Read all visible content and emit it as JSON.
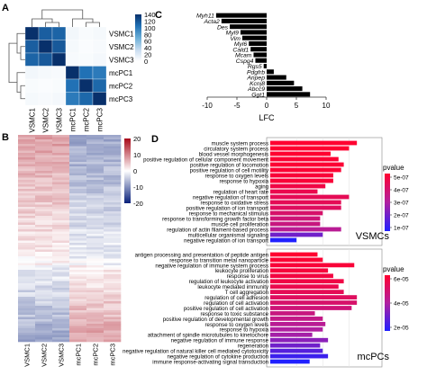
{
  "panel_labels": {
    "a": "A",
    "b": "B",
    "c": "C",
    "d": "D"
  },
  "chart_data": [
    {
      "type": "heatmap",
      "panel": "A",
      "rows": [
        "VSMC1",
        "VSMC2",
        "VSMC3",
        "mcPC1",
        "mcPC2",
        "mcPC3"
      ],
      "columns": [
        "VSMC1",
        "VSMC2",
        "VSMC3",
        "mcPC1",
        "mcPC2",
        "mcPC3"
      ],
      "values": [
        [
          140,
          115,
          112,
          8,
          4,
          6
        ],
        [
          115,
          140,
          118,
          6,
          3,
          5
        ],
        [
          112,
          118,
          140,
          5,
          4,
          7
        ],
        [
          8,
          6,
          5,
          140,
          105,
          100
        ],
        [
          4,
          3,
          4,
          105,
          140,
          110
        ],
        [
          6,
          5,
          7,
          100,
          110,
          140
        ]
      ],
      "colorbar": {
        "ticks": [
          "140",
          "120",
          "100",
          "80",
          "60",
          "40",
          "20",
          "0"
        ],
        "min": 0,
        "max": 140,
        "colors": [
          "#ffffff",
          "#c6dbef",
          "#6baed6",
          "#2171b5",
          "#08306b"
        ]
      },
      "dendrogram": true
    },
    {
      "type": "heatmap",
      "panel": "B",
      "columns": [
        "VSMC1",
        "VSMC2",
        "VSMC3",
        "mcPC1",
        "mcPC2",
        "mcPC3"
      ],
      "colorbar": {
        "ticks": [
          "20",
          "10",
          "0",
          "-10",
          "-20"
        ],
        "min": -20,
        "max": 20,
        "colors": [
          "#08207a",
          "#ffffff",
          "#a80a1a"
        ]
      }
    },
    {
      "type": "bar",
      "panel": "C",
      "orientation": "horizontal",
      "categories": [
        "Myh11",
        "Acta2",
        "Des",
        "Myl9",
        "Vim",
        "Myl6",
        "Cald1",
        "Mcam",
        "Cspg4",
        "Rgs5",
        "Pdgfrb",
        "Anpep",
        "Kcnj8",
        "Abcc9",
        "Ggt1"
      ],
      "values": [
        -8.5,
        -7.6,
        -6.2,
        -4.4,
        -4.1,
        -3.0,
        -2.7,
        -2.2,
        -1.9,
        -0.5,
        1.2,
        3.3,
        4.6,
        6.0,
        7.3
      ],
      "xlabel": "LFC",
      "xlim": [
        -10,
        10
      ],
      "xticks": [
        -10,
        -5,
        0,
        5,
        10
      ],
      "bar_color": "#000000"
    },
    {
      "type": "bar",
      "panel": "D",
      "subtitle": "VSMCs",
      "orientation": "horizontal",
      "categories": [
        "muscle system process",
        "circulatory system process",
        "blood vessel morphogenesis",
        "positive regulation of cellular component movement",
        "positive regulation of locomotion",
        "positive regulation of cell motility",
        "response to oxygen levels",
        "response to hypoxia",
        "aging",
        "regulation of heart rate",
        "negative regulation of transport",
        "response to oxidative stress",
        "positive regulation of ion transport",
        "response to mechanical stimulus",
        "response to transforming growth factor beta",
        "muscle cell proliferation",
        "regulation of actin filament-based process",
        "multicellular organismal signaling",
        "negative regulation of ion transport"
      ],
      "values": [
        33,
        30,
        23,
        26,
        28,
        27,
        24,
        24,
        21,
        18,
        30,
        27,
        27,
        20,
        19,
        19,
        27,
        20,
        10
      ],
      "pvalue": [
        1e-08,
        1e-08,
        1e-08,
        2e-08,
        2e-08,
        2e-08,
        3e-08,
        3e-08,
        6e-08,
        8e-08,
        1e-07,
        1e-07,
        1.2e-07,
        1.5e-07,
        1.8e-07,
        2e-07,
        2.5e-07,
        4e-07,
        5.5e-07
      ],
      "legend_title": "pvalue",
      "legend_ticks": [
        "5e-07",
        "4e-07",
        "3e-07",
        "2e-07",
        "1e-07"
      ],
      "colors": [
        "#ff0030",
        "#b020a0",
        "#2020ff"
      ],
      "xlim": [
        0,
        35
      ]
    },
    {
      "type": "bar",
      "panel": "D",
      "subtitle": "mcPCs",
      "orientation": "horizontal",
      "categories": [
        "antigen processing and presentation of peptide antigen",
        "response to transition metal nanoparticle",
        "negative regulation of immune system process",
        "leukocyte proliferation",
        "response to virus",
        "regulation of leukocyte activation",
        "leukocyte mediated immunity",
        "T cell aggregation",
        "regulation of cell adhesion",
        "regulation of cell activation",
        "positive regulation of cell activation",
        "response to toxic substance",
        "positive regulation of developmental growth",
        "response to oxygen levels",
        "response to hypoxia",
        "attachment of spindle microtubules to kinetochore",
        "negative regulation of immune response",
        "regeneration",
        "negative regulation of natural killer cell mediated cytotoxicity",
        "negative regulation of cytokine production",
        "immune response-activating signal transduction"
      ],
      "values": [
        18,
        20,
        32,
        22,
        24,
        28,
        26,
        28,
        33,
        33,
        31,
        17,
        20,
        21,
        20,
        16,
        22,
        19,
        20,
        22,
        15
      ],
      "pvalue": [
        1e-06,
        2e-06,
        3e-06,
        4e-06,
        5e-06,
        6e-06,
        8e-06,
        1e-05,
        1.2e-05,
        1.5e-05,
        1.8e-05,
        2e-05,
        2.2e-05,
        2.5e-05,
        2.8e-05,
        3e-05,
        3.5e-05,
        4e-05,
        4.5e-05,
        5e-05,
        5.5e-05
      ],
      "legend_title": "pvalue",
      "legend_ticks": [
        "6e-05",
        "4e-05",
        "2e-05"
      ],
      "colors": [
        "#ff0030",
        "#b020a0",
        "#2020ff"
      ],
      "xlim": [
        0,
        35
      ]
    }
  ]
}
